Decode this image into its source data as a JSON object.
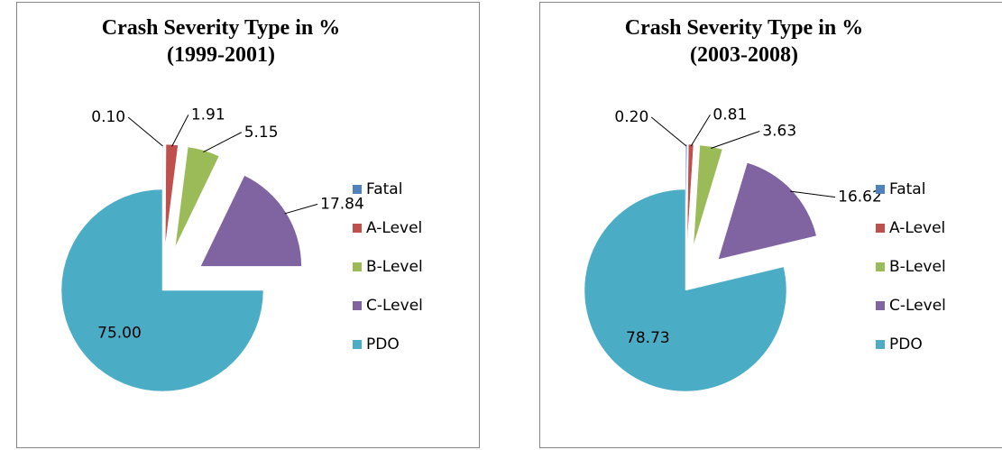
{
  "chart_data": [
    {
      "type": "pie",
      "title": "Crash Severity Type in %",
      "subtitle": "(1999-2001)",
      "categories": [
        "Fatal",
        "A-Level",
        "B-Level",
        "C-Level",
        "PDO"
      ],
      "values": [
        0.1,
        1.91,
        5.15,
        17.84,
        75
      ],
      "value_labels": [
        "0.10",
        "1.91",
        "5.15",
        "17.84",
        "75.00"
      ],
      "colors": [
        "#4f81bd",
        "#c0504d",
        "#9bbb59",
        "#8064a2",
        "#4bacc6"
      ],
      "legend": "right"
    },
    {
      "type": "pie",
      "title": "Crash Severity Type in %",
      "subtitle": "(2003-2008)",
      "categories": [
        "Fatal",
        "A-Level",
        "B-Level",
        "C-Level",
        "PDO"
      ],
      "values": [
        0.2,
        0.81,
        3.63,
        16.62,
        78.73
      ],
      "value_labels": [
        "0.20",
        "0.81",
        "3.63",
        "16.62",
        "78.73"
      ],
      "colors": [
        "#4f81bd",
        "#c0504d",
        "#9bbb59",
        "#8064a2",
        "#4bacc6"
      ],
      "legend": "right"
    }
  ]
}
